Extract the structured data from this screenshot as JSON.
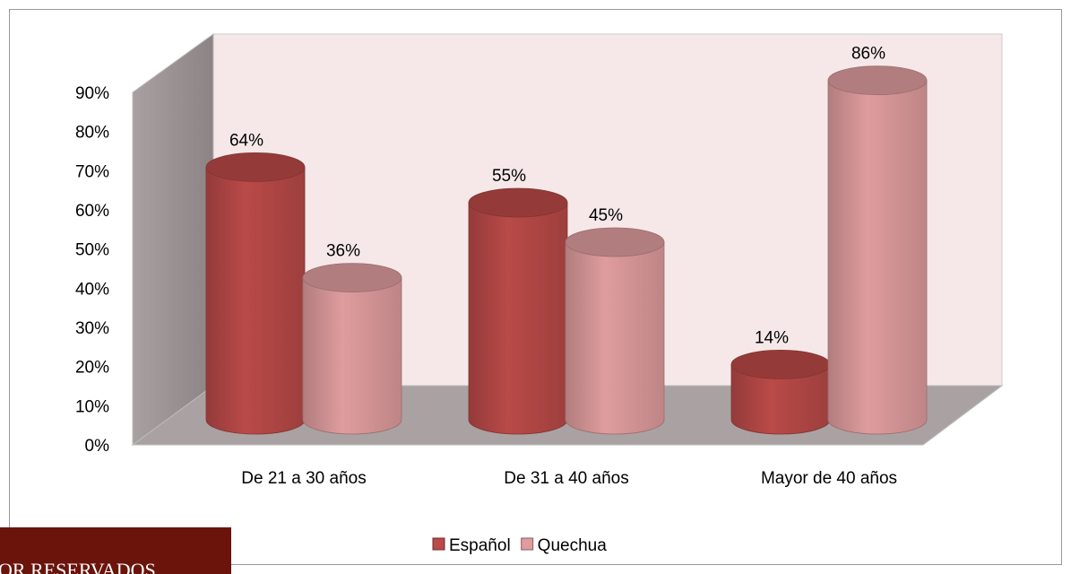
{
  "chart_data": {
    "type": "bar3d",
    "categories": [
      "De 21 a 30 años",
      "De 31 a 40 años",
      "Mayor de 40 años"
    ],
    "series": [
      {
        "name": "Español",
        "color": "#b94a48",
        "values": [
          64,
          55,
          14
        ],
        "value_labels": [
          "64%",
          "55%",
          "14%"
        ]
      },
      {
        "name": "Quechua",
        "color": "#df9c9e",
        "values": [
          36,
          45,
          86
        ],
        "value_labels": [
          "36%",
          "45%",
          "86%"
        ]
      }
    ],
    "ylim": [
      0,
      90
    ],
    "yticks": [
      {
        "value": 0,
        "label": "0%"
      },
      {
        "value": 10,
        "label": "10%"
      },
      {
        "value": 20,
        "label": "20%"
      },
      {
        "value": 30,
        "label": "30%"
      },
      {
        "value": 40,
        "label": "40%"
      },
      {
        "value": 50,
        "label": "50%"
      },
      {
        "value": 60,
        "label": "60%"
      },
      {
        "value": 70,
        "label": "70%"
      },
      {
        "value": 80,
        "label": "80%"
      },
      {
        "value": 90,
        "label": "90%"
      }
    ],
    "legend": "bottom"
  },
  "overlay": {
    "text": "OR RESERVADOS"
  }
}
